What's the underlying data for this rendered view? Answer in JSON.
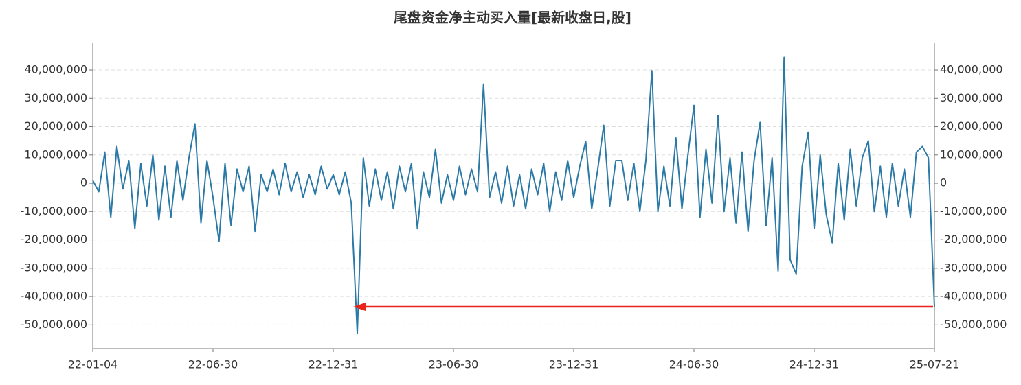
{
  "chart_data": {
    "type": "line",
    "title": "尾盘资金净主动买入量[最新收盘日,股]",
    "categories": [
      "22-01-04",
      null,
      null,
      null,
      null,
      null,
      null,
      null,
      null,
      null,
      null,
      null,
      null,
      null,
      null,
      null,
      null,
      null,
      null,
      null,
      "22-06-30",
      null,
      null,
      null,
      null,
      null,
      null,
      null,
      null,
      null,
      null,
      null,
      null,
      null,
      null,
      null,
      null,
      null,
      null,
      null,
      "22-12-31",
      null,
      null,
      null,
      null,
      null,
      null,
      null,
      null,
      null,
      null,
      null,
      null,
      null,
      null,
      null,
      null,
      null,
      null,
      null,
      "23-06-30",
      null,
      null,
      null,
      null,
      null,
      null,
      null,
      null,
      null,
      null,
      null,
      null,
      null,
      null,
      null,
      null,
      null,
      null,
      null,
      "23-12-31",
      null,
      null,
      null,
      null,
      null,
      null,
      null,
      null,
      null,
      null,
      null,
      null,
      null,
      null,
      null,
      null,
      null,
      null,
      null,
      "24-06-30",
      null,
      null,
      null,
      null,
      null,
      null,
      null,
      null,
      null,
      null,
      null,
      null,
      null,
      null,
      null,
      null,
      null,
      null,
      null,
      "24-12-31",
      null,
      null,
      null,
      null,
      null,
      null,
      null,
      null,
      null,
      null,
      null,
      null,
      null,
      null,
      null,
      null,
      null,
      null,
      null,
      "25-07-21"
    ],
    "series": [
      {
        "color": "#2a79a6",
        "values": [
          1000000,
          -3000000,
          11000000,
          -12000000,
          13000000,
          -2000000,
          8000000,
          -16000000,
          7000000,
          -8000000,
          10000000,
          -13000000,
          6000000,
          -12000000,
          8000000,
          -6000000,
          9000000,
          21000000,
          -14000000,
          8000000,
          -5000000,
          -20500000,
          7000000,
          -15000000,
          5000000,
          -3000000,
          6000000,
          -17000000,
          3000000,
          -3000000,
          5000000,
          -4000000,
          7000000,
          -3000000,
          4000000,
          -5000000,
          3000000,
          -4000000,
          6000000,
          -2000000,
          3000000,
          -4000000,
          4000000,
          -7000000,
          -53000000,
          9000000,
          -8000000,
          5000000,
          -6000000,
          4000000,
          -9000000,
          6000000,
          -3000000,
          7000000,
          -16000000,
          4000000,
          -5000000,
          12000000,
          -7000000,
          3000000,
          -6000000,
          6000000,
          -4000000,
          5000000,
          -3000000,
          35000000,
          -5000000,
          4000000,
          -7000000,
          6000000,
          -8000000,
          3000000,
          -9000000,
          5000000,
          -4000000,
          7000000,
          -10000000,
          4000000,
          -6000000,
          8000000,
          -5000000,
          6000000,
          14800000,
          -9000000,
          5000000,
          20500000,
          -8000000,
          8000000,
          8000000,
          -6000000,
          7000000,
          -10000000,
          8000000,
          39700000,
          -10000000,
          6000000,
          -8000000,
          16000000,
          -9000000,
          10000000,
          27500000,
          -12000000,
          12000000,
          -7000000,
          24000000,
          -10000000,
          9000000,
          -14000000,
          11000000,
          -17000000,
          8000000,
          21500000,
          -15000000,
          9000000,
          -31000000,
          44500000,
          -27000000,
          -32000000,
          6000000,
          18000000,
          -16000000,
          10000000,
          -11000000,
          -21000000,
          7000000,
          -13000000,
          12000000,
          -8000000,
          9000000,
          15000000,
          -10000000,
          6000000,
          -12000000,
          7000000,
          -8000000,
          5000000,
          -12000000,
          11000000,
          13000000,
          9000000,
          -43600000
        ]
      }
    ],
    "ylim": [
      -58400000,
      49700000
    ],
    "yticks": [
      {
        "value": -50000000,
        "label": "-50,000,000"
      },
      {
        "value": -40000000,
        "label": "-40,000,000"
      },
      {
        "value": -30000000,
        "label": "-30,000,000"
      },
      {
        "value": -20000000,
        "label": "-20,000,000"
      },
      {
        "value": -10000000,
        "label": "-10,000,000"
      },
      0,
      {
        "value": 10000000,
        "label": "10,000,000"
      },
      {
        "value": 20000000,
        "label": "20,000,000"
      },
      {
        "value": 30000000,
        "label": "30,000,000"
      },
      {
        "value": 40000000,
        "label": "40,000,000"
      }
    ],
    "y2lim": [
      -58400000,
      49700000
    ],
    "y2ticks": [
      {
        "value": -50000000,
        "label": "-50,000,000"
      },
      {
        "value": -40000000,
        "label": "-40,000,000"
      },
      {
        "value": -30000000,
        "label": "-30,000,000"
      },
      {
        "value": -20000000,
        "label": "-20,000,000"
      },
      {
        "value": -10000000,
        "label": "-10,000,000"
      },
      0,
      {
        "value": 10000000,
        "label": "10,000,000"
      },
      {
        "value": 20000000,
        "label": "20,000,000"
      },
      {
        "value": 30000000,
        "label": "30,000,000"
      },
      {
        "value": 40000000,
        "label": "40,000,000"
      }
    ],
    "grid": true
  }
}
